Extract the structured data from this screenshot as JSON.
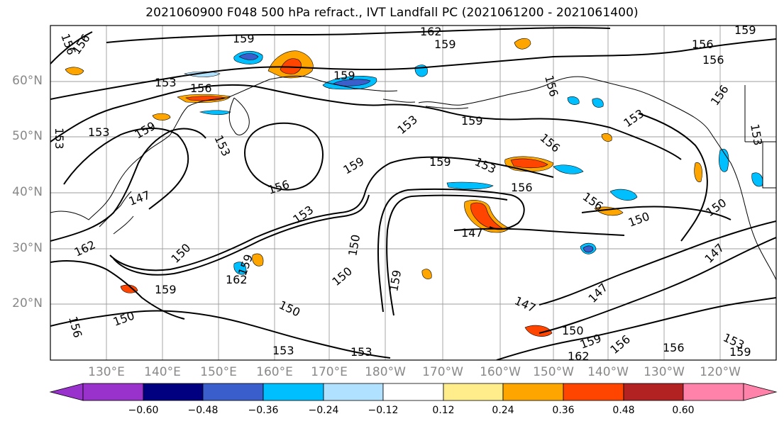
{
  "title": "2021060900 F048 500 hPa refract., IVT Landfall PC (2021061200 - 2021061400)",
  "lat_labels": [
    "60°N",
    "50°N",
    "40°N",
    "30°N",
    "20°N"
  ],
  "lon_labels": [
    "130°E",
    "140°E",
    "150°E",
    "160°E",
    "170°E",
    "180°W",
    "170°W",
    "160°W",
    "150°W",
    "140°W",
    "130°W",
    "120°W"
  ],
  "colorbar": {
    "tick_labels": [
      "−0.60",
      "−0.48",
      "−0.36",
      "−0.24",
      "−0.12",
      "0.12",
      "0.24",
      "0.36",
      "0.48",
      "0.60"
    ],
    "colors": [
      "#9932cc",
      "#000080",
      "#3a5fcd",
      "#00bfff",
      "#b0e2ff",
      "#ffffff",
      "#ffec8b",
      "#ffa500",
      "#ff4500",
      "#b22222",
      "#ff82ab"
    ]
  },
  "contour_labels": [
    "159",
    "162",
    "159",
    "156",
    "156",
    "153",
    "156",
    "159",
    "159",
    "153",
    "153",
    "156",
    "156",
    "156",
    "159",
    "153",
    "159",
    "156",
    "153",
    "153",
    "159",
    "156",
    "159",
    "156",
    "156",
    "147",
    "153",
    "150",
    "147",
    "150",
    "156",
    "150",
    "162",
    "153",
    "147",
    "150",
    "159",
    "150",
    "162",
    "159",
    "159",
    "150",
    "150",
    "153",
    "153",
    "147",
    "150",
    "147",
    "156",
    "153",
    "159",
    "156",
    "162",
    "159",
    "156",
    "153"
  ],
  "colors": {
    "contour": "#000000",
    "grid": "#9e9e9e",
    "coast": "#000000"
  }
}
